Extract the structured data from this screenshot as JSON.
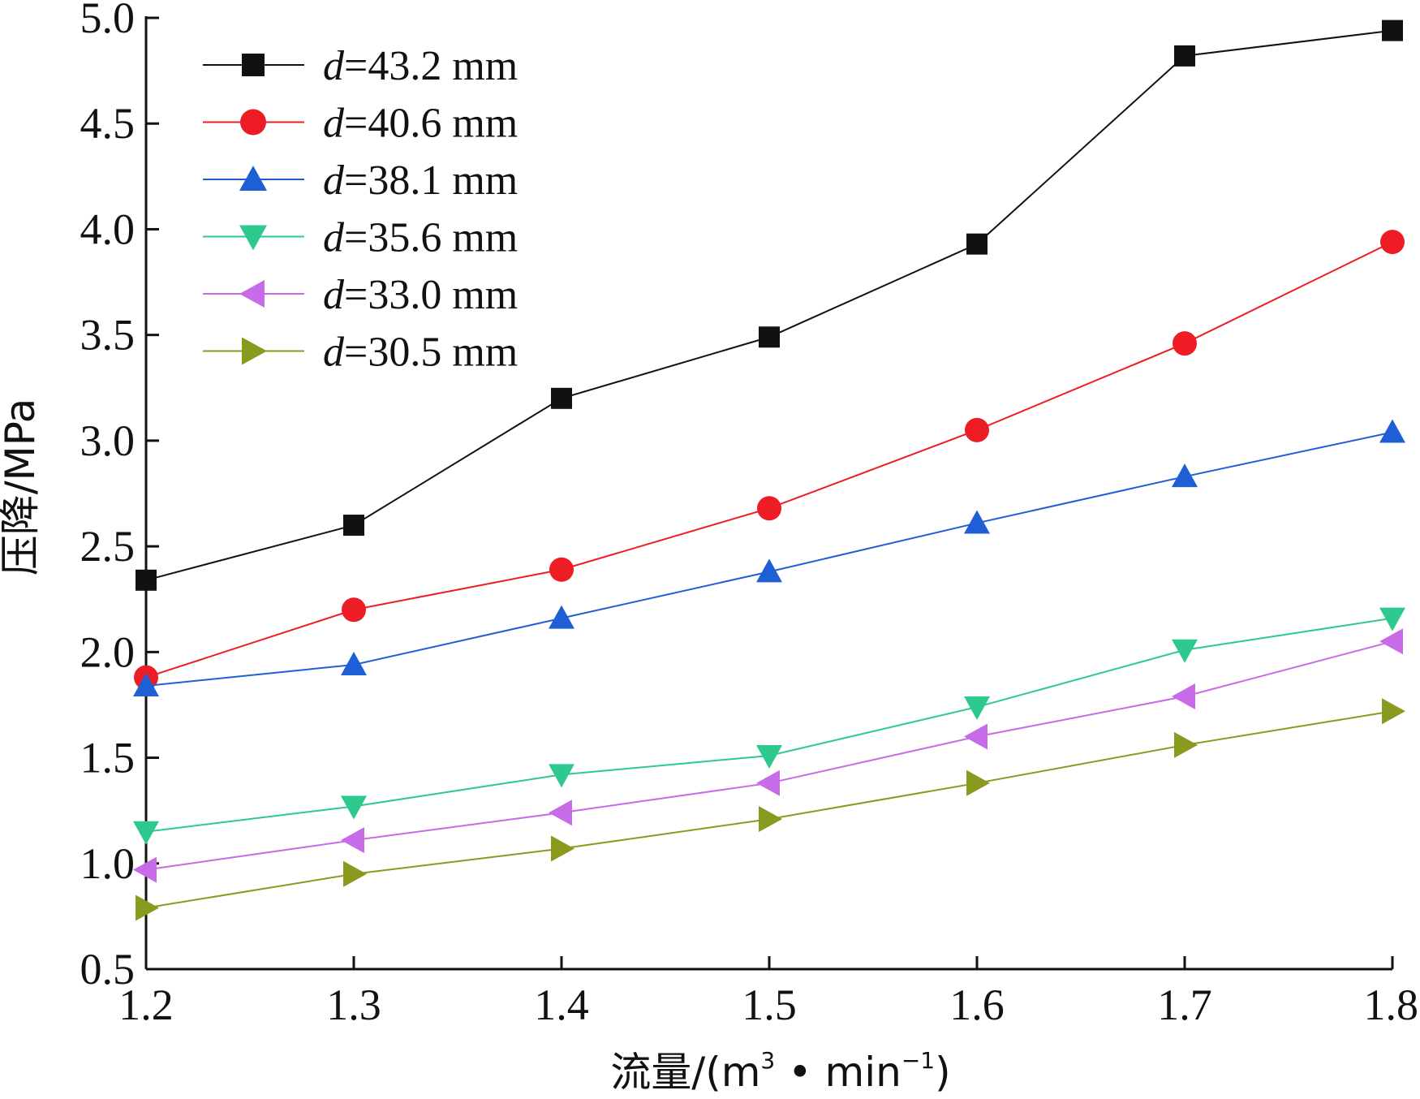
{
  "chart_data": {
    "type": "line",
    "title": "",
    "xlabel": "流量/(m³·min⁻¹)",
    "xlabel_parts": {
      "main": "流量/(m",
      "sup1": "3",
      "mid": " • min",
      "sup2": "−1",
      "end": ")"
    },
    "ylabel": "压降/MPa",
    "xlim": [
      1.2,
      1.8
    ],
    "ylim": [
      0.5,
      5.0
    ],
    "xticks": [
      1.2,
      1.3,
      1.4,
      1.5,
      1.6,
      1.7,
      1.8
    ],
    "xtick_labels": [
      "1.2",
      "1.3",
      "1.4",
      "1.5",
      "1.6",
      "1.7",
      "1.8"
    ],
    "yticks": [
      0.5,
      1.0,
      1.5,
      2.0,
      2.5,
      3.0,
      3.5,
      4.0,
      4.5,
      5.0
    ],
    "ytick_labels": [
      "0.5",
      "1.0",
      "1.5",
      "2.0",
      "2.5",
      "3.0",
      "3.5",
      "4.0",
      "4.5",
      "5.0"
    ],
    "grid": false,
    "legend_position": "top-left",
    "x": [
      1.2,
      1.3,
      1.4,
      1.5,
      1.6,
      1.7,
      1.8
    ],
    "series": [
      {
        "name": "d=43.2 mm",
        "var": "d",
        "rest": "=43.2 mm",
        "marker": "square",
        "color": "#111111",
        "values": [
          2.34,
          2.6,
          3.2,
          3.49,
          3.93,
          4.82,
          4.94
        ]
      },
      {
        "name": "d=40.6 mm",
        "var": "d",
        "rest": "=40.6 mm",
        "marker": "circle",
        "color": "#ee1c25",
        "values": [
          1.88,
          2.2,
          2.39,
          2.68,
          3.05,
          3.46,
          3.94
        ]
      },
      {
        "name": "d=38.1 mm",
        "var": "d",
        "rest": "=38.1 mm",
        "marker": "triangle-up",
        "color": "#1f5fd6",
        "values": [
          1.84,
          1.94,
          2.16,
          2.38,
          2.61,
          2.83,
          3.04
        ]
      },
      {
        "name": "d=35.6 mm",
        "var": "d",
        "rest": "=35.6 mm",
        "marker": "triangle-down",
        "color": "#2ec98c",
        "values": [
          1.15,
          1.27,
          1.42,
          1.51,
          1.74,
          2.01,
          2.16
        ]
      },
      {
        "name": "d=33.0 mm",
        "var": "d",
        "rest": "=33.0 mm",
        "marker": "triangle-left",
        "color": "#c86be8",
        "values": [
          0.97,
          1.11,
          1.24,
          1.38,
          1.6,
          1.79,
          2.05
        ]
      },
      {
        "name": "d=30.5 mm",
        "var": "d",
        "rest": "=30.5 mm",
        "marker": "triangle-right",
        "color": "#8a9a1e",
        "values": [
          0.79,
          0.95,
          1.07,
          1.21,
          1.38,
          1.56,
          1.72
        ]
      }
    ]
  }
}
